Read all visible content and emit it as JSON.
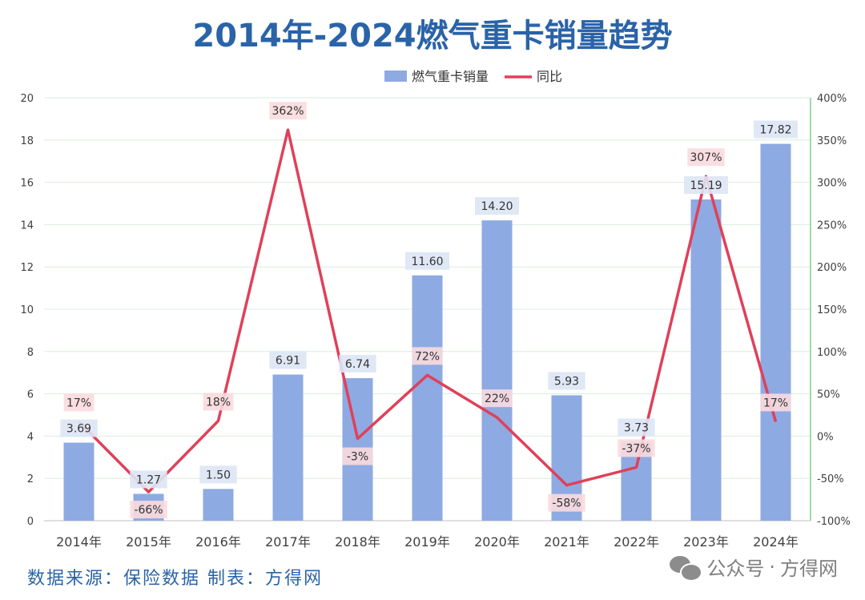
{
  "title": "2014年-2024燃气重卡销量趋势",
  "footer": {
    "source": "数据来源：保险数据 制表：方得网",
    "watermark_account": "公众号",
    "watermark_dot": "·",
    "watermark_name": "方得网",
    "watermark_icon": "wechat-icon"
  },
  "colors": {
    "bar": "#8eaae2",
    "line": "#e0405a",
    "bar_label_bg": "#dde5f5",
    "line_label_bg": "#fadadf",
    "grid": "#d8eedc",
    "axis_text": "#404040"
  },
  "chart_data": {
    "type": "bar",
    "categories": [
      "2014年",
      "2015年",
      "2016年",
      "2017年",
      "2018年",
      "2019年",
      "2020年",
      "2021年",
      "2022年",
      "2023年",
      "2024年"
    ],
    "series": [
      {
        "name": "燃气重卡销量",
        "type": "bar",
        "axis": "left",
        "values": [
          3.69,
          1.27,
          1.5,
          6.91,
          6.74,
          11.6,
          14.2,
          5.93,
          3.73,
          15.19,
          17.82
        ],
        "labels": [
          "3.69",
          "1.27",
          "1.50",
          "6.91",
          "6.74",
          "11.60",
          "14.20",
          "5.93",
          "3.73",
          "15.19",
          "17.82"
        ]
      },
      {
        "name": "同比",
        "type": "line",
        "axis": "right",
        "values": [
          17,
          -66,
          18,
          362,
          -3,
          72,
          22,
          -58,
          -37,
          307,
          17
        ],
        "labels": [
          "17%",
          "-66%",
          "18%",
          "362%",
          "-3%",
          "72%",
          "22%",
          "-58%",
          "-37%",
          "307%",
          "17%"
        ]
      }
    ],
    "y_left": {
      "range": [
        0,
        20
      ],
      "ticks": [
        "0",
        "2",
        "4",
        "6",
        "8",
        "10",
        "12",
        "14",
        "16",
        "18",
        "20"
      ]
    },
    "y_right": {
      "range": [
        -100,
        400
      ],
      "ticks": [
        "-100%",
        "-50%",
        "0%",
        "50%",
        "100%",
        "150%",
        "200%",
        "250%",
        "300%",
        "350%",
        "400%"
      ]
    },
    "grid": true,
    "legend_position": "top-center"
  }
}
